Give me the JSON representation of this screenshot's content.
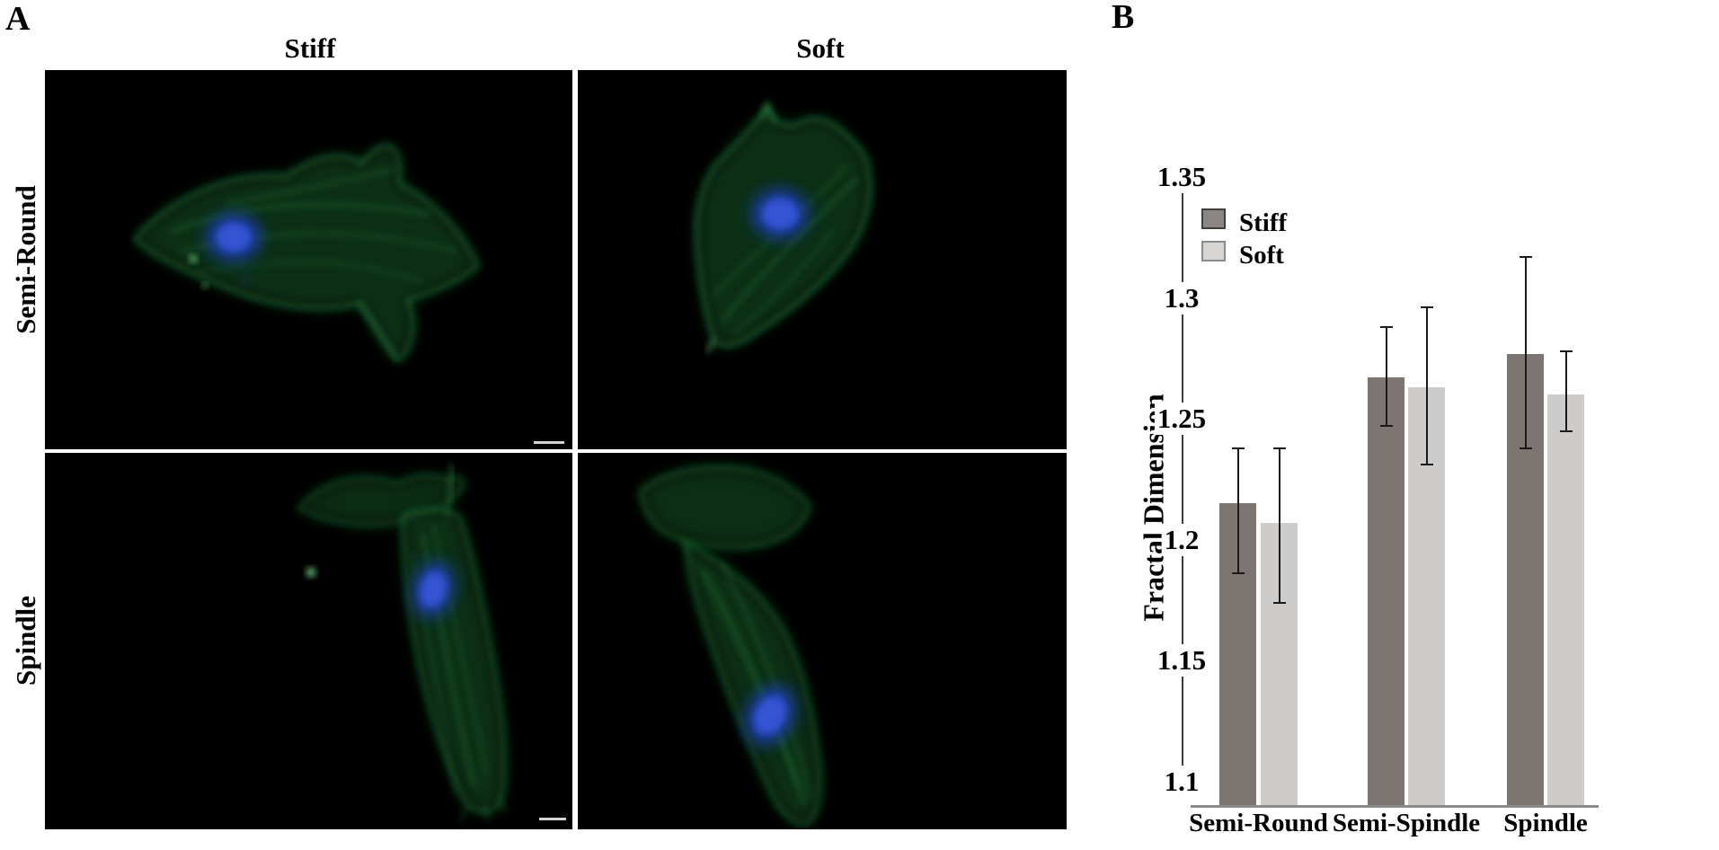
{
  "figure": {
    "panel_a": {
      "label": "A",
      "columns": [
        "Stiff",
        "Soft"
      ],
      "rows": [
        "Semi-Round",
        "Spindle"
      ],
      "micrographs": [
        {
          "id": "semi-round-stiff",
          "description": "fluorescence micrograph: spread semi-round cell, green actin filaments, blue nucleus, black background",
          "scale_bar": true
        },
        {
          "id": "semi-round-soft",
          "description": "fluorescence micrograph: semi-round cell with apical protrusions, green actin, blue nucleus, black background",
          "scale_bar": false
        },
        {
          "id": "spindle-stiff",
          "description": "fluorescence micrograph: elongated spindle cell, green actin fibers, blue nucleus, black background",
          "scale_bar": true
        },
        {
          "id": "spindle-soft",
          "description": "fluorescence micrograph: elongated spindle cell with broad lamella, green actin fibers, blue nucleus, black background",
          "scale_bar": false
        }
      ]
    },
    "panel_b": {
      "label": "B",
      "chart_data": {
        "type": "bar",
        "title": "",
        "xlabel": "",
        "ylabel": "Fractal Dimension",
        "categories": [
          "Semi-Round",
          "Semi-Spindle",
          "Spindle"
        ],
        "series": [
          {
            "name": "Stiff",
            "color": "#7d7571",
            "values": [
              1.215,
              1.267,
              1.277
            ],
            "err_low": [
              1.186,
              1.247,
              1.238
            ],
            "err_high": [
              1.238,
              1.288,
              1.317
            ]
          },
          {
            "name": "Soft",
            "color": "#cdccca",
            "values": [
              1.207,
              1.263,
              1.26
            ],
            "err_low": [
              1.174,
              1.231,
              1.245
            ],
            "err_high": [
              1.238,
              1.296,
              1.278
            ]
          }
        ],
        "ylim": [
          1.1,
          1.35
        ],
        "yticks": [
          1.1,
          1.15,
          1.2,
          1.25,
          1.3,
          1.35
        ],
        "grid": false,
        "error_bars": true,
        "legend_position": "inside-top-left"
      }
    },
    "colors": {
      "background": "#ffffff",
      "image_background": "#000000",
      "actin_green": "#2f9e4f",
      "nucleus_blue": "#2746c8",
      "scale_bar": "#d3d3d3",
      "error_bar": "#1a1a1a",
      "axis_line": "#3c3c3c",
      "baseline": "#8a8a8a",
      "legend_stiff_fill": "#8b8683",
      "legend_stiff_border": "#3f3f3f",
      "legend_soft_fill": "#d6d5d4",
      "legend_soft_border": "#8a8a8a"
    }
  }
}
